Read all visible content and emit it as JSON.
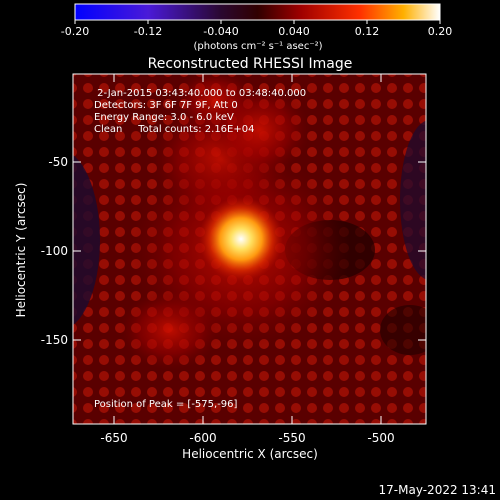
{
  "colorbar": {
    "ticks": [
      "-0.20",
      "-0.12",
      "-0.040",
      "0.040",
      "0.12",
      "0.20"
    ],
    "units_label": "(photons cm⁻² s⁻¹ asec⁻²)"
  },
  "image": {
    "title": "Reconstructed RHESSI Image",
    "info_lines": [
      " 2-Jan-2015 03:43:40.000 to 03:48:40.000",
      "Detectors: 3F 6F 7F 9F, Att 0",
      "Energy Range: 3.0 - 6.0 keV",
      "Clean     Total counts: 2.16E+04"
    ],
    "peak_label": "Position of Peak = [-575,-96]",
    "x_label": "Heliocentric X (arcsec)",
    "y_label": "Heliocentric Y (arcsec)",
    "x_ticks": [
      "-650",
      "-600",
      "-550",
      "-500"
    ],
    "y_ticks": [
      "-50",
      "-100",
      "-150"
    ],
    "peak": {
      "x": -575,
      "y": -96
    }
  },
  "footer": {
    "timestamp": "17-May-2022 13:41"
  }
}
